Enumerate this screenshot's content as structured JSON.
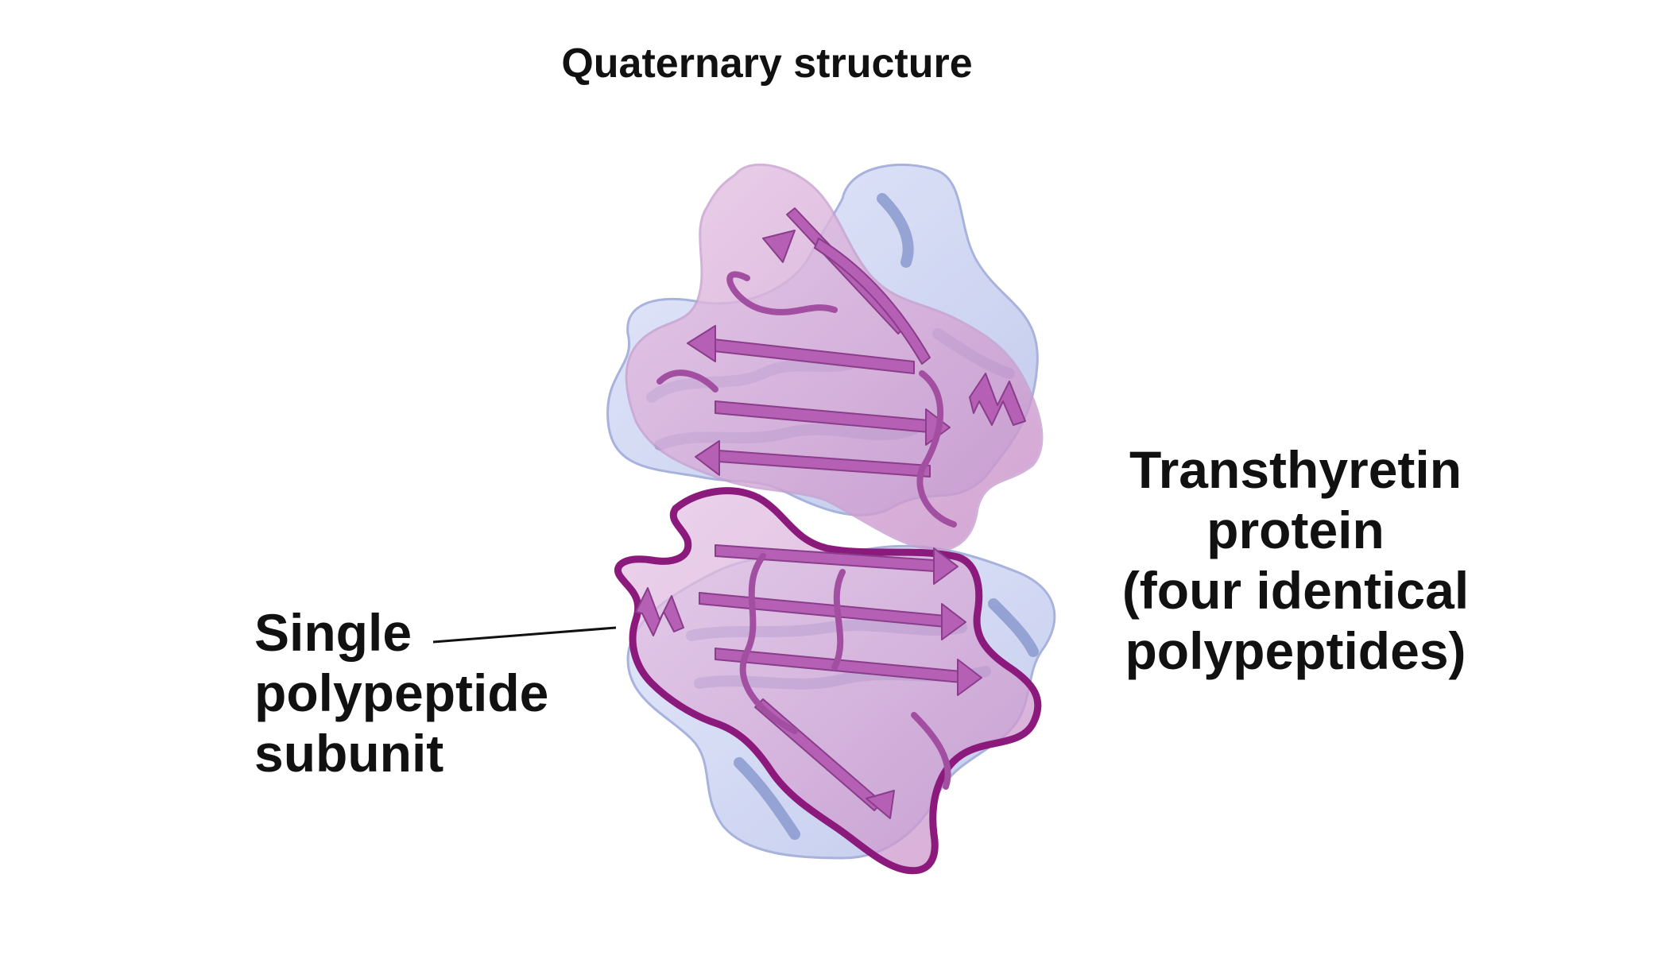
{
  "title": "Quaternary structure",
  "labels": {
    "subunit": [
      "Single",
      "polypeptide",
      "subunit"
    ],
    "protein": [
      "Transthyretin",
      "protein",
      "(four identical",
      "polypeptides)"
    ]
  },
  "colors": {
    "subunit_fill": "#d9b2d9",
    "subunit_outline": "#8b1a7c",
    "ribbon_purple": "#b05fb0",
    "ribbon_blue": "#9aa8d6",
    "shell_blue": "#c6cdf0"
  }
}
